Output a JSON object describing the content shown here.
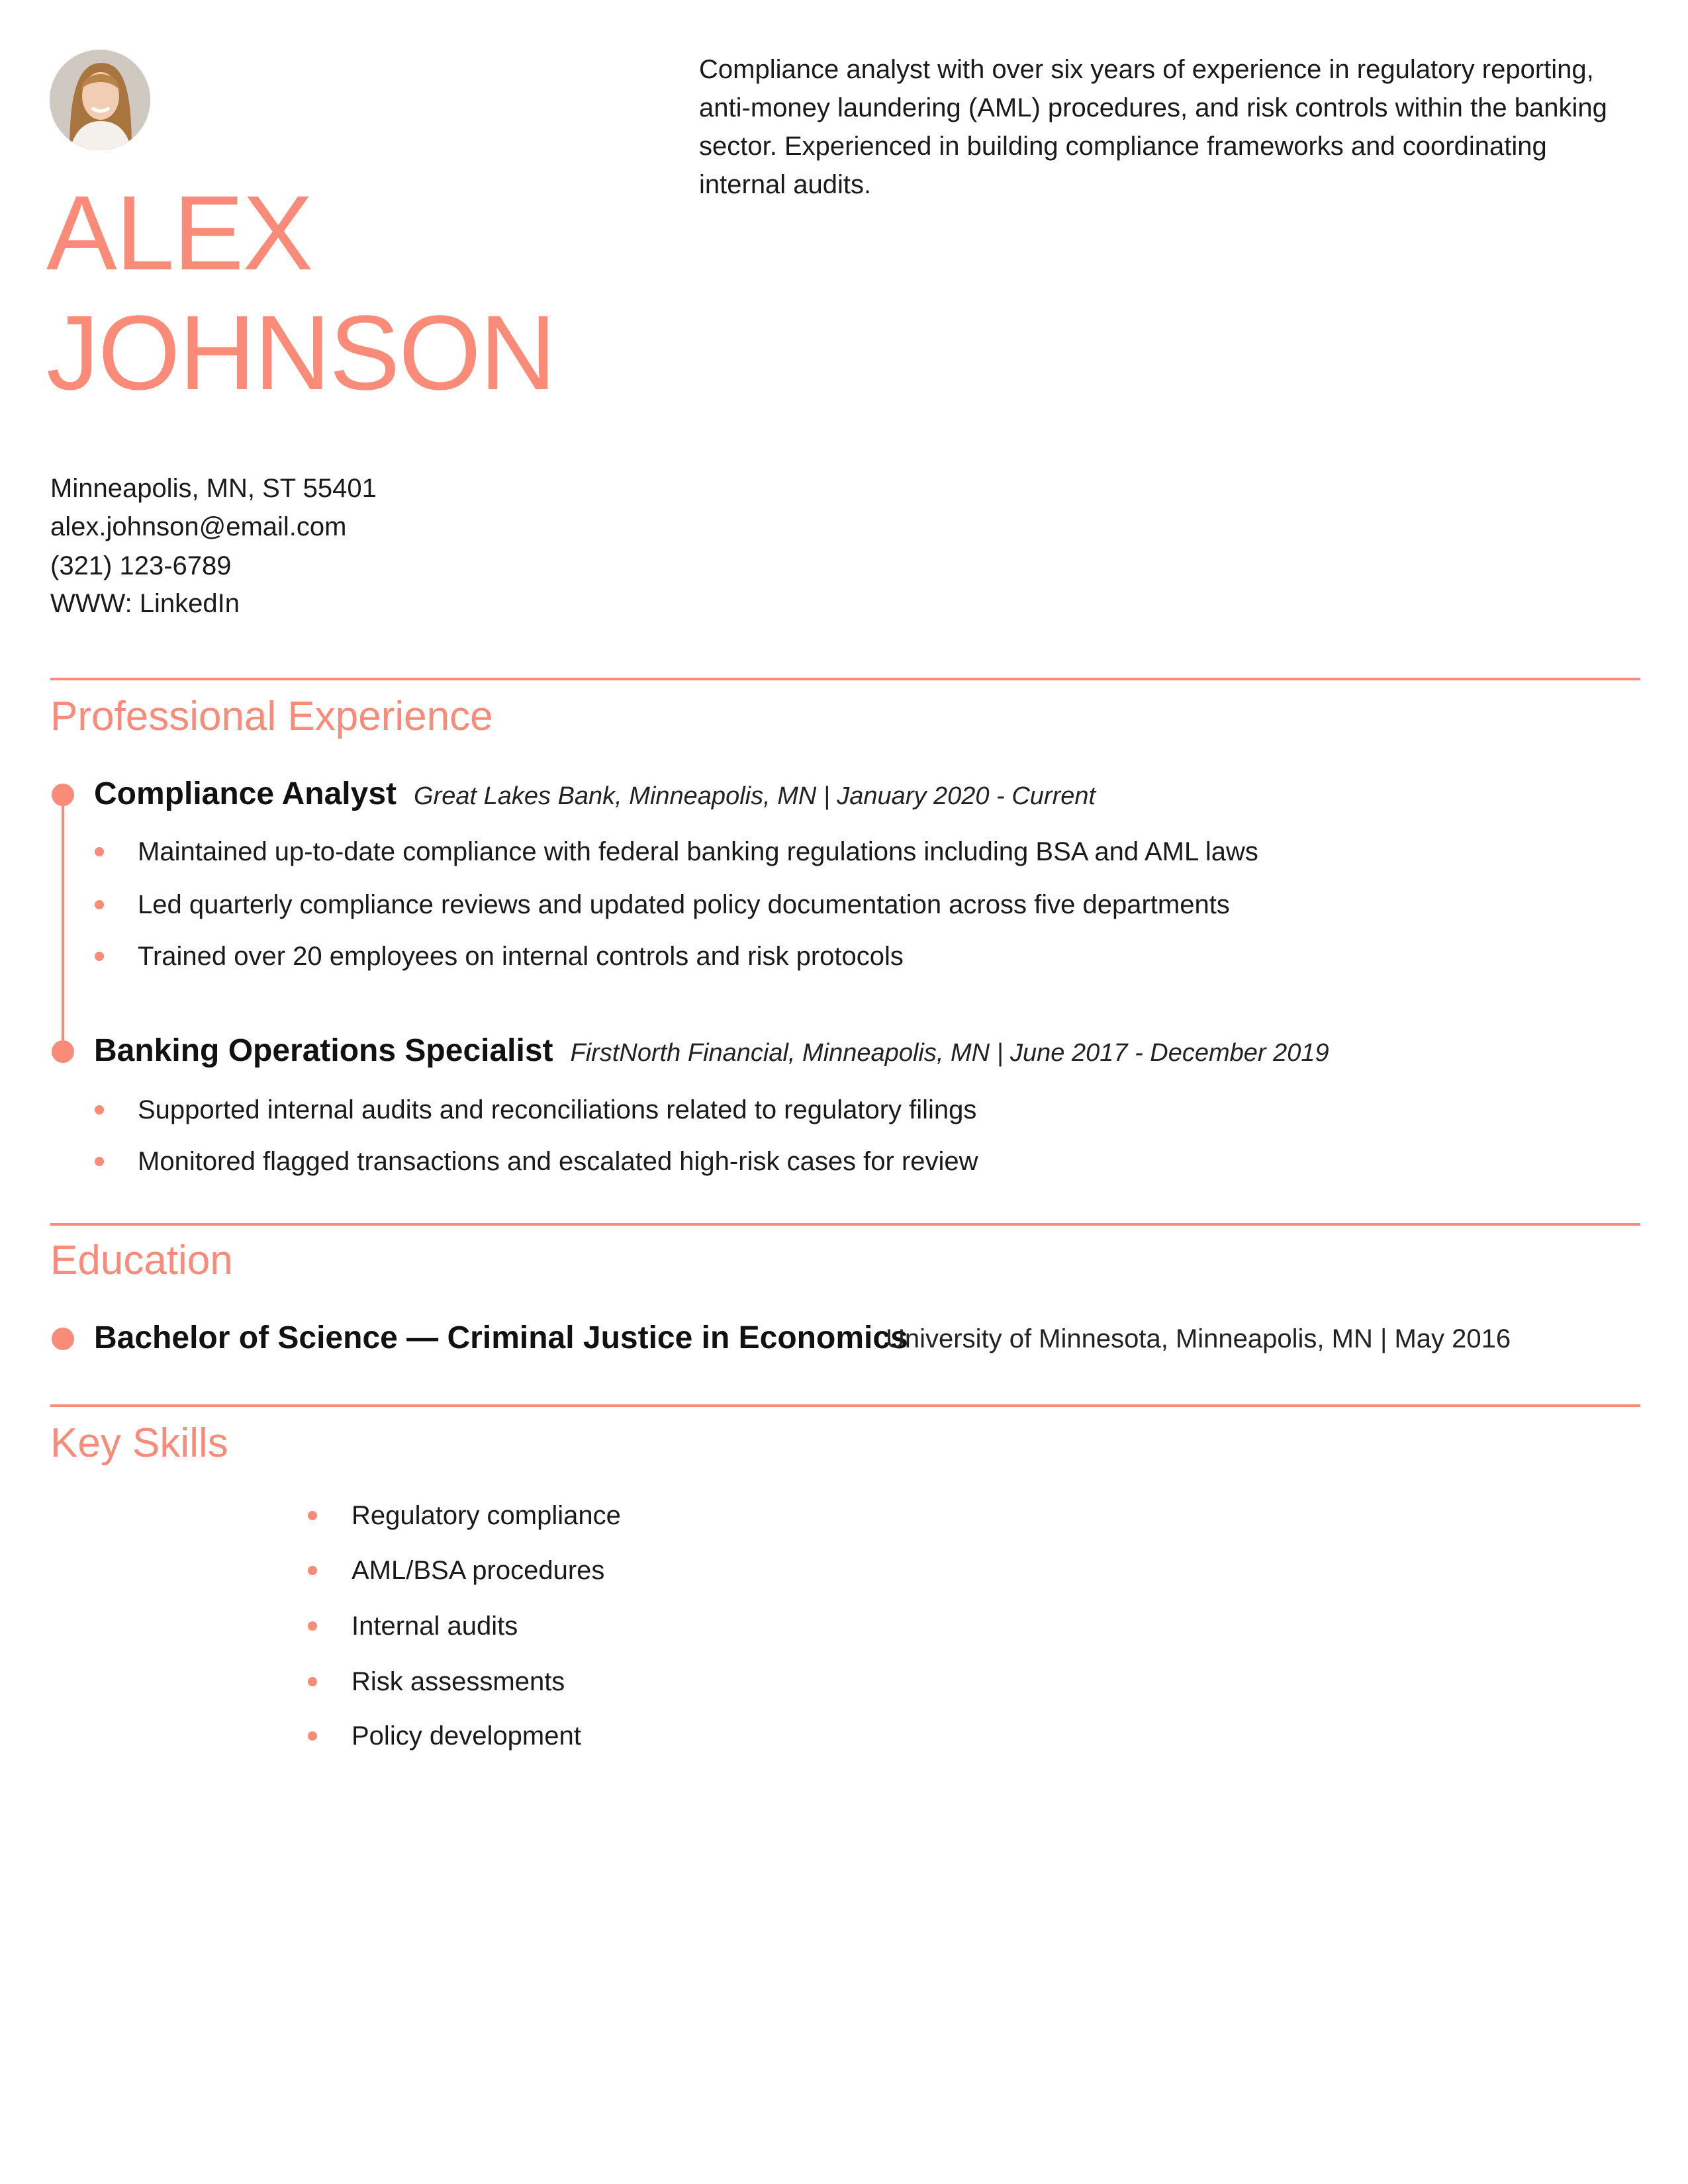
{
  "header": {
    "photo_alt": "profile photo",
    "first_name": "ALEX",
    "last_name": "JOHNSON",
    "summary": "Compliance analyst with over six years of experience in regulatory reporting, anti-money laundering (AML) procedures, and risk controls within the banking sector. Experienced in building compliance frameworks and coordinating internal audits."
  },
  "contact": {
    "address": "Minneapolis, MN, ST 55401",
    "email": "alex.johnson@email.com",
    "phone": "(321) 123-6789",
    "website": "WWW: LinkedIn"
  },
  "experience": {
    "heading": "Professional Experience",
    "jobs": [
      {
        "title": "Compliance Analyst",
        "meta": "Great Lakes Bank, Minneapolis, MN | January 2020 - Current",
        "bullets": [
          "Maintained up-to-date compliance with federal banking regulations including BSA and AML laws",
          "Led quarterly compliance reviews and updated policy documentation across five departments",
          "Trained over 20 employees on internal controls and risk protocols"
        ]
      },
      {
        "title": "Banking Operations Specialist",
        "meta": "FirstNorth Financial, Minneapolis, MN | June 2017 - December 2019",
        "bullets": [
          "Supported internal audits and reconciliations related to regulatory filings",
          "Monitored flagged transactions and escalated high-risk cases for review"
        ]
      }
    ]
  },
  "education": {
    "heading": "Education",
    "degree": "Bachelor of Science — Criminal Justice in Economics",
    "school": "University of Minnesota, Minneapolis, MN | May 2016"
  },
  "skills": {
    "heading": "Key Skills",
    "items": [
      "Regulatory compliance",
      "AML/BSA procedures",
      "Internal audits",
      "Risk assessments",
      "Policy development"
    ]
  },
  "colors": {
    "accent": "#F98B78",
    "text": "#1a1a1a"
  }
}
